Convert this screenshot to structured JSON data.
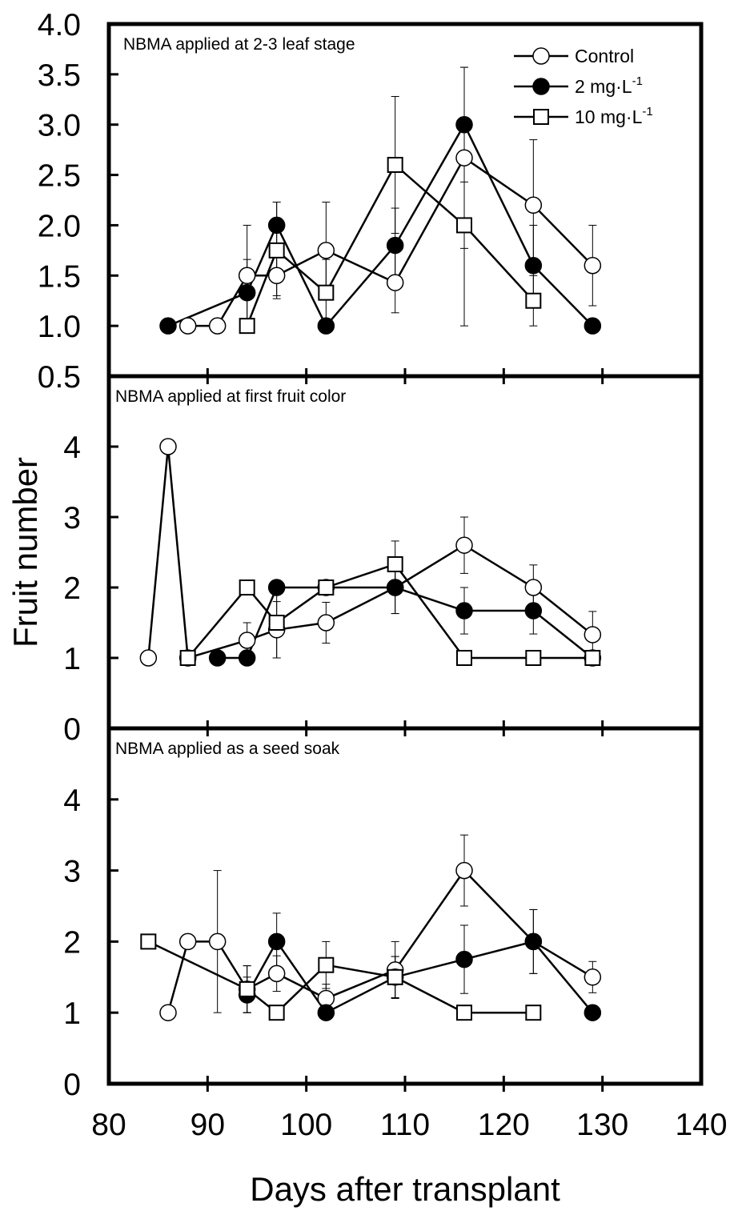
{
  "chart_data": {
    "type": "line",
    "xlabel": "Days after transplant",
    "ylabel": "Fruit number",
    "xlim": [
      80,
      140
    ],
    "xticks": [
      80,
      90,
      100,
      110,
      120,
      130,
      140
    ],
    "legend": {
      "position": "top-right",
      "entries": [
        {
          "label": "Control",
          "unit_base": "",
          "unit_exp": "",
          "marker": "open-circle"
        },
        {
          "label": "2 mg·L",
          "unit_exp": "-1",
          "marker": "filled-circle"
        },
        {
          "label": "10 mg·L",
          "unit_exp": "-1",
          "marker": "open-square"
        }
      ]
    },
    "panels": [
      {
        "title": "NBMA applied at 2-3 leaf stage",
        "ylim": [
          0.5,
          4.0
        ],
        "yticks": [
          "0.5",
          "1.0",
          "1.5",
          "2.0",
          "2.5",
          "3.0",
          "3.5",
          "4.0"
        ],
        "series": [
          {
            "name": "Control",
            "marker": "open-circle",
            "points": [
              {
                "x": 88,
                "y": 1.0
              },
              {
                "x": 91,
                "y": 1.0
              },
              {
                "x": 94,
                "y": 1.5,
                "err": 0.5
              },
              {
                "x": 97,
                "y": 1.5,
                "err": 0.2
              },
              {
                "x": 102,
                "y": 1.75,
                "err": 0.48
              },
              {
                "x": 109,
                "y": 1.43,
                "err": 0.3
              },
              {
                "x": 116,
                "y": 2.67,
                "err": 0.9
              },
              {
                "x": 123,
                "y": 2.2,
                "err": 0.65
              },
              {
                "x": 129,
                "y": 1.6,
                "err": 0.4
              }
            ]
          },
          {
            "name": "2 mg·L-1",
            "marker": "filled-circle",
            "points": [
              {
                "x": 86,
                "y": 1.0
              },
              {
                "x": 94,
                "y": 1.33,
                "err": 0.33
              },
              {
                "x": 97,
                "y": 2.0,
                "err": 0.23
              },
              {
                "x": 102,
                "y": 1.0
              },
              {
                "x": 109,
                "y": 1.8,
                "err": 0.37
              },
              {
                "x": 116,
                "y": 3.0,
                "err": 0.57
              },
              {
                "x": 123,
                "y": 1.6,
                "err": 0.4
              },
              {
                "x": 129,
                "y": 1.0
              }
            ]
          },
          {
            "name": "10 mg·L-1",
            "marker": "open-square",
            "points": [
              {
                "x": 94,
                "y": 1.0
              },
              {
                "x": 97,
                "y": 1.75,
                "err": 0.48
              },
              {
                "x": 102,
                "y": 1.33,
                "err": 0.33
              },
              {
                "x": 109,
                "y": 2.6,
                "err": 0.68
              },
              {
                "x": 116,
                "y": 2.0,
                "err": 1.0
              },
              {
                "x": 123,
                "y": 1.25,
                "err": 0.25
              }
            ]
          }
        ]
      },
      {
        "title": "NBMA applied at first fruit color",
        "ylim": [
          0,
          5
        ],
        "yticks": [
          "0",
          "1",
          "2",
          "3",
          "4"
        ],
        "series": [
          {
            "name": "Control",
            "marker": "open-circle",
            "points": [
              {
                "x": 84,
                "y": 1.0
              },
              {
                "x": 86,
                "y": 4.0
              },
              {
                "x": 88,
                "y": 1.0
              },
              {
                "x": 94,
                "y": 1.25,
                "err": 0.25
              },
              {
                "x": 97,
                "y": 1.4,
                "err": 0.4
              },
              {
                "x": 102,
                "y": 1.5,
                "err": 0.29
              },
              {
                "x": 109,
                "y": 2.0,
                "err": 0.37
              },
              {
                "x": 116,
                "y": 2.6,
                "err": 0.4
              },
              {
                "x": 123,
                "y": 2.0,
                "err": 0.32
              },
              {
                "x": 129,
                "y": 1.33,
                "err": 0.33
              }
            ]
          },
          {
            "name": "2 mg·L-1",
            "marker": "filled-circle",
            "points": [
              {
                "x": 91,
                "y": 1.0
              },
              {
                "x": 94,
                "y": 1.0
              },
              {
                "x": 97,
                "y": 2.0
              },
              {
                "x": 102,
                "y": 2.0
              },
              {
                "x": 109,
                "y": 2.0,
                "err": 0.37
              },
              {
                "x": 116,
                "y": 1.67,
                "err": 0.33
              },
              {
                "x": 123,
                "y": 1.67,
                "err": 0.33
              },
              {
                "x": 129,
                "y": 1.0
              }
            ]
          },
          {
            "name": "10 mg·L-1",
            "marker": "open-square",
            "points": [
              {
                "x": 88,
                "y": 1.0
              },
              {
                "x": 94,
                "y": 2.0
              },
              {
                "x": 97,
                "y": 1.5,
                "err": 0.5
              },
              {
                "x": 102,
                "y": 2.0
              },
              {
                "x": 109,
                "y": 2.33,
                "err": 0.33
              },
              {
                "x": 116,
                "y": 1.0
              },
              {
                "x": 123,
                "y": 1.0
              },
              {
                "x": 129,
                "y": 1.0
              }
            ]
          }
        ]
      },
      {
        "title": "NBMA applied as a seed soak",
        "ylim": [
          0,
          5
        ],
        "yticks": [
          "0",
          "1",
          "2",
          "3",
          "4"
        ],
        "series": [
          {
            "name": "Control",
            "marker": "open-circle",
            "points": [
              {
                "x": 86,
                "y": 1.0
              },
              {
                "x": 88,
                "y": 2.0
              },
              {
                "x": 91,
                "y": 2.0,
                "err": 1.0
              },
              {
                "x": 94,
                "y": 1.33,
                "err": 0.33
              },
              {
                "x": 97,
                "y": 1.55,
                "err": 0.25
              },
              {
                "x": 102,
                "y": 1.2,
                "err": 0.2
              },
              {
                "x": 109,
                "y": 1.6,
                "err": 0.4
              },
              {
                "x": 116,
                "y": 3.0,
                "err": 0.5
              },
              {
                "x": 123,
                "y": 2.0,
                "err": 0.45
              },
              {
                "x": 129,
                "y": 1.5,
                "err": 0.22
              }
            ]
          },
          {
            "name": "2 mg·L-1",
            "marker": "filled-circle",
            "points": [
              {
                "x": 94,
                "y": 1.25,
                "err": 0.25
              },
              {
                "x": 97,
                "y": 2.0,
                "err": 0.4
              },
              {
                "x": 102,
                "y": 1.0
              },
              {
                "x": 109,
                "y": 1.5,
                "err": 0.29
              },
              {
                "x": 116,
                "y": 1.75,
                "err": 0.48
              },
              {
                "x": 123,
                "y": 2.0,
                "err": 0.45
              },
              {
                "x": 129,
                "y": 1.0
              }
            ]
          },
          {
            "name": "10 mg·L-1",
            "marker": "open-square",
            "points": [
              {
                "x": 84,
                "y": 2.0
              },
              {
                "x": 94,
                "y": 1.33,
                "err": 0.33
              },
              {
                "x": 97,
                "y": 1.0
              },
              {
                "x": 102,
                "y": 1.67,
                "err": 0.33
              },
              {
                "x": 109,
                "y": 1.5,
                "err": 0.29
              },
              {
                "x": 116,
                "y": 1.0
              },
              {
                "x": 123,
                "y": 1.0
              }
            ]
          }
        ]
      }
    ]
  }
}
